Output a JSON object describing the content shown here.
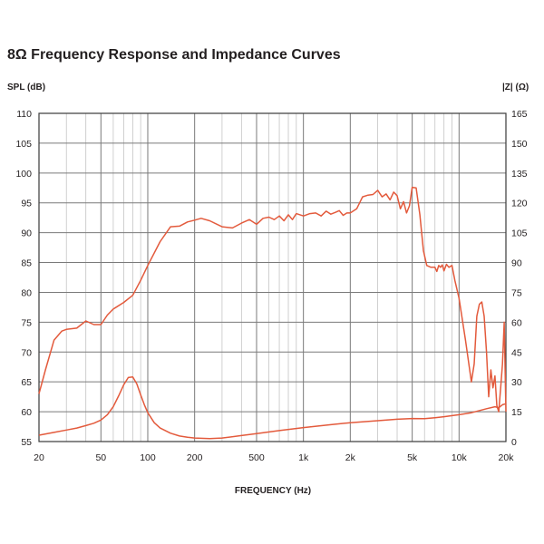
{
  "chart_data": {
    "type": "line",
    "title": "8Ω Frequency Response and Impedance Curves",
    "ylabel_left": "SPL (dB)",
    "ylabel_right": "|Z| (Ω)",
    "xlabel": "FREQUENCY (Hz)",
    "x_scale": "log",
    "xlim": [
      20,
      20000
    ],
    "ylim_left": [
      55,
      110
    ],
    "ylim_right": [
      0,
      165
    ],
    "x_ticks": [
      {
        "value": 20,
        "label": "20"
      },
      {
        "value": 50,
        "label": "50"
      },
      {
        "value": 100,
        "label": "100"
      },
      {
        "value": 200,
        "label": "200"
      },
      {
        "value": 500,
        "label": "500"
      },
      {
        "value": 1000,
        "label": "1k"
      },
      {
        "value": 2000,
        "label": "2k"
      },
      {
        "value": 5000,
        "label": "5k"
      },
      {
        "value": 10000,
        "label": "10k"
      },
      {
        "value": 20000,
        "label": "20k"
      }
    ],
    "y_ticks_left": [
      "110",
      "105",
      "100",
      "95",
      "90",
      "85",
      "80",
      "75",
      "70",
      "65",
      "60",
      "55"
    ],
    "y_ticks_right": [
      "165",
      "150",
      "135",
      "120",
      "105",
      "90",
      "75",
      "60",
      "45",
      "30",
      "15",
      "0"
    ],
    "grid": true,
    "line_color": "#e35a3c",
    "series": [
      {
        "axis": "left",
        "x": [
          20,
          22,
          25,
          28,
          30,
          35,
          40,
          45,
          50,
          55,
          60,
          70,
          80,
          90,
          100,
          120,
          140,
          160,
          180,
          200,
          220,
          250,
          300,
          350,
          400,
          450,
          500,
          550,
          600,
          650,
          700,
          750,
          800,
          850,
          900,
          1000,
          1100,
          1200,
          1300,
          1400,
          1500,
          1600,
          1700,
          1800,
          1900,
          2000,
          2200,
          2400,
          2600,
          2800,
          3000,
          3200,
          3400,
          3600,
          3800,
          4000,
          4200,
          4400,
          4600,
          4800,
          5000,
          5300,
          5600,
          5900,
          6200,
          6600,
          7000,
          7200,
          7400,
          7600,
          7800,
          8000,
          8300,
          8600,
          9000,
          9400,
          10000,
          11000,
          12000,
          12500,
          13000,
          13500,
          14000,
          14500,
          15000,
          15500,
          16000,
          16500,
          17000,
          17500,
          18000,
          18500,
          19000,
          19500,
          20000
        ],
        "y": [
          63,
          67,
          72,
          73.5,
          73.8,
          74,
          75.2,
          74.6,
          74.6,
          76.2,
          77.2,
          78.3,
          79.5,
          82,
          84.5,
          88.5,
          91,
          91.1,
          91.8,
          92.1,
          92.4,
          92,
          91,
          90.8,
          91.6,
          92.2,
          91.4,
          92.4,
          92.6,
          92.2,
          92.8,
          92,
          93,
          92.2,
          93.2,
          92.8,
          93.2,
          93.3,
          92.8,
          93.6,
          93.1,
          93.4,
          93.7,
          92.9,
          93.3,
          93.3,
          94,
          96,
          96.3,
          96.4,
          97.1,
          96,
          96.5,
          95.5,
          96.8,
          96.2,
          94,
          95.2,
          93.3,
          94.5,
          97.6,
          97.5,
          93,
          87,
          84.5,
          84.2,
          84.2,
          83.5,
          84.5,
          84.2,
          84.6,
          83.6,
          84.7,
          84.2,
          84.5,
          82,
          79,
          72,
          65,
          68,
          76,
          78,
          78.4,
          76,
          70,
          62.5,
          67,
          64,
          66,
          61,
          60,
          64,
          68,
          75,
          60
        ]
      },
      {
        "axis": "right",
        "x": [
          20,
          25,
          30,
          35,
          40,
          45,
          50,
          55,
          60,
          65,
          70,
          75,
          80,
          85,
          90,
          95,
          100,
          110,
          120,
          140,
          160,
          180,
          200,
          250,
          300,
          400,
          500,
          700,
          1000,
          1500,
          2000,
          3000,
          4000,
          5000,
          6000,
          7000,
          8000,
          10000,
          12000,
          15000,
          17000,
          18000,
          19000,
          20000
        ],
        "y": [
          3.2,
          4.6,
          5.8,
          6.8,
          8,
          9.2,
          10.8,
          13.5,
          17.5,
          23,
          28.5,
          32.2,
          32.5,
          29,
          23.5,
          18.5,
          14.5,
          9.5,
          6.8,
          4.2,
          2.8,
          2.2,
          1.8,
          1.5,
          1.8,
          3,
          4,
          5.5,
          7,
          8.5,
          9.5,
          10.5,
          11.2,
          11.6,
          11.5,
          12,
          12.5,
          13.5,
          14.5,
          16.5,
          17.5,
          17,
          18.5,
          19
        ]
      }
    ]
  }
}
